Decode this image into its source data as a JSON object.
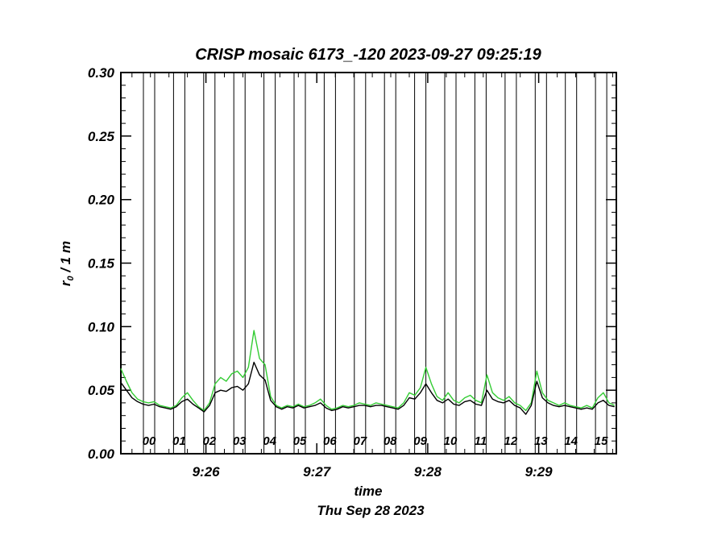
{
  "chart_data": {
    "type": "line",
    "title": "CRISP mosaic 6173_-120 2023-09-27 09:25:19",
    "xlabel": "time",
    "footer": "Thu Sep 28 2023",
    "ylabel": "r0 / 1 m",
    "ylabel_parts": {
      "base": "r",
      "sub": "0",
      "rest": " / 1 m"
    },
    "ylim": [
      0.0,
      0.3
    ],
    "y_major_ticks": [
      0.0,
      0.05,
      0.1,
      0.15,
      0.2,
      0.25,
      0.3
    ],
    "y_minor_step": 0.01,
    "grid": false,
    "legend": "none",
    "colors": {
      "series_green": "#33cc33",
      "series_black": "#000000",
      "axis": "#000000",
      "background": "#ffffff"
    },
    "x_axis": {
      "start_seconds": 0,
      "end_seconds": 268,
      "start_time_of_day": "9:25:14",
      "major_ticks": [
        {
          "t": 46,
          "label": "9:26"
        },
        {
          "t": 106,
          "label": "9:27"
        },
        {
          "t": 166,
          "label": "9:28"
        },
        {
          "t": 226,
          "label": "9:29"
        }
      ],
      "minor_tick_step_seconds": 10,
      "minor_tick_offset_seconds": 6
    },
    "x_seconds": [
      0,
      3,
      6,
      9,
      12,
      15,
      18,
      21,
      24,
      27,
      30,
      33,
      36,
      39,
      42,
      45,
      48,
      51,
      54,
      57,
      60,
      63,
      66,
      69,
      72,
      75,
      78,
      81,
      84,
      87,
      90,
      93,
      96,
      99,
      102,
      105,
      108,
      111,
      114,
      117,
      120,
      123,
      126,
      129,
      132,
      135,
      138,
      141,
      144,
      147,
      150,
      153,
      156,
      159,
      162,
      165,
      168,
      171,
      174,
      177,
      180,
      183,
      186,
      189,
      192,
      195,
      198,
      201,
      204,
      207,
      210,
      213,
      216,
      219,
      222,
      225,
      228,
      231,
      234,
      237,
      240,
      243,
      246,
      249,
      252,
      255,
      258,
      261,
      264,
      267
    ],
    "series": [
      {
        "name": "green",
        "color": "#33cc33",
        "values": [
          0.067,
          0.057,
          0.048,
          0.043,
          0.041,
          0.04,
          0.041,
          0.038,
          0.037,
          0.036,
          0.038,
          0.044,
          0.048,
          0.042,
          0.037,
          0.034,
          0.04,
          0.055,
          0.06,
          0.057,
          0.063,
          0.065,
          0.06,
          0.068,
          0.097,
          0.075,
          0.07,
          0.045,
          0.038,
          0.036,
          0.038,
          0.037,
          0.039,
          0.037,
          0.038,
          0.04,
          0.043,
          0.038,
          0.035,
          0.036,
          0.038,
          0.037,
          0.038,
          0.04,
          0.039,
          0.038,
          0.04,
          0.039,
          0.038,
          0.037,
          0.036,
          0.04,
          0.048,
          0.046,
          0.052,
          0.068,
          0.055,
          0.045,
          0.042,
          0.048,
          0.042,
          0.04,
          0.044,
          0.046,
          0.042,
          0.04,
          0.062,
          0.048,
          0.044,
          0.042,
          0.045,
          0.04,
          0.038,
          0.034,
          0.04,
          0.065,
          0.048,
          0.042,
          0.04,
          0.038,
          0.04,
          0.038,
          0.037,
          0.036,
          0.038,
          0.036,
          0.044,
          0.048,
          0.04,
          0.038
        ]
      },
      {
        "name": "black",
        "color": "#000000",
        "values": [
          0.056,
          0.05,
          0.044,
          0.041,
          0.039,
          0.038,
          0.039,
          0.037,
          0.036,
          0.035,
          0.037,
          0.041,
          0.043,
          0.039,
          0.036,
          0.033,
          0.038,
          0.048,
          0.05,
          0.049,
          0.052,
          0.053,
          0.05,
          0.055,
          0.072,
          0.062,
          0.058,
          0.042,
          0.037,
          0.035,
          0.037,
          0.036,
          0.038,
          0.036,
          0.037,
          0.038,
          0.04,
          0.036,
          0.034,
          0.035,
          0.037,
          0.036,
          0.037,
          0.038,
          0.038,
          0.037,
          0.038,
          0.038,
          0.037,
          0.036,
          0.035,
          0.038,
          0.044,
          0.043,
          0.048,
          0.055,
          0.048,
          0.042,
          0.04,
          0.043,
          0.039,
          0.038,
          0.041,
          0.042,
          0.039,
          0.038,
          0.05,
          0.043,
          0.041,
          0.04,
          0.042,
          0.038,
          0.036,
          0.031,
          0.038,
          0.057,
          0.044,
          0.04,
          0.038,
          0.037,
          0.038,
          0.037,
          0.036,
          0.035,
          0.036,
          0.035,
          0.04,
          0.042,
          0.038,
          0.037
        ]
      }
    ],
    "scan_markers": [
      {
        "label": "00",
        "t1": 12.2,
        "t2": 18.3
      },
      {
        "label": "01",
        "t1": 28.5,
        "t2": 34.6
      },
      {
        "label": "02",
        "t1": 44.8,
        "t2": 50.9
      },
      {
        "label": "03",
        "t1": 61.1,
        "t2": 67.2
      },
      {
        "label": "04",
        "t1": 77.4,
        "t2": 83.5
      },
      {
        "label": "05",
        "t1": 93.7,
        "t2": 99.8
      },
      {
        "label": "06",
        "t1": 110.0,
        "t2": 116.1
      },
      {
        "label": "07",
        "t1": 126.3,
        "t2": 132.4
      },
      {
        "label": "08",
        "t1": 142.6,
        "t2": 148.7
      },
      {
        "label": "09",
        "t1": 158.9,
        "t2": 165.0
      },
      {
        "label": "10",
        "t1": 175.2,
        "t2": 181.3
      },
      {
        "label": "11",
        "t1": 191.5,
        "t2": 197.6
      },
      {
        "label": "12",
        "t1": 207.8,
        "t2": 213.9
      },
      {
        "label": "13",
        "t1": 224.1,
        "t2": 230.2
      },
      {
        "label": "14",
        "t1": 240.4,
        "t2": 246.5
      },
      {
        "label": "15",
        "t1": 256.7,
        "t2": 262.8
      }
    ]
  }
}
